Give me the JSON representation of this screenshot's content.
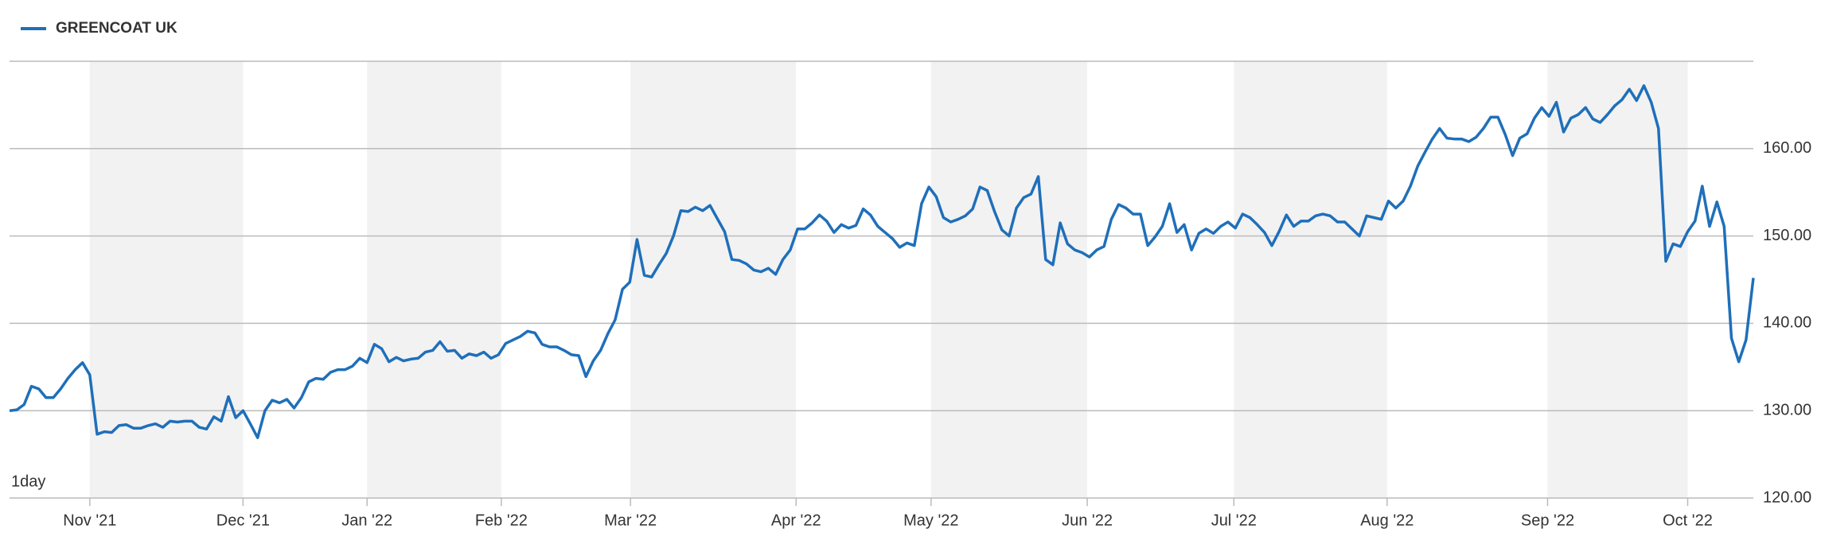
{
  "chart_data": {
    "type": "line",
    "legend_text": "GREENCOAT UK",
    "interval_label": "1day",
    "series": [
      {
        "name": "GREENCOAT UK",
        "color": "#1f6fba",
        "values": [
          130.0,
          130.1,
          130.7,
          132.8,
          132.5,
          131.5,
          131.5,
          132.5,
          133.7,
          134.7,
          135.5,
          134.1,
          127.3,
          127.6,
          127.5,
          128.3,
          128.4,
          128.0,
          128.0,
          128.3,
          128.5,
          128.1,
          128.8,
          128.7,
          128.8,
          128.8,
          128.1,
          127.9,
          129.3,
          128.8,
          131.6,
          129.2,
          130.0,
          128.5,
          126.9,
          130.0,
          131.2,
          130.9,
          131.3,
          130.3,
          131.5,
          133.3,
          133.7,
          133.6,
          134.4,
          134.7,
          134.7,
          135.1,
          136.0,
          135.5,
          137.6,
          137.1,
          135.6,
          136.1,
          135.7,
          135.9,
          136.0,
          136.7,
          136.9,
          137.9,
          136.8,
          136.9,
          136.0,
          136.5,
          136.3,
          136.7,
          136.0,
          136.4,
          137.7,
          138.1,
          138.5,
          139.1,
          138.9,
          137.6,
          137.3,
          137.3,
          136.9,
          136.4,
          136.3,
          133.9,
          135.7,
          136.9,
          138.8,
          140.4,
          143.9,
          144.7,
          149.6,
          145.5,
          145.3,
          146.7,
          148.0,
          150.0,
          152.9,
          152.8,
          153.3,
          152.9,
          153.5,
          152.0,
          150.5,
          147.3,
          147.2,
          146.8,
          146.1,
          145.9,
          146.3,
          145.6,
          147.3,
          148.4,
          150.8,
          150.8,
          151.5,
          152.4,
          151.7,
          150.4,
          151.3,
          150.9,
          151.2,
          153.1,
          152.4,
          151.1,
          150.4,
          149.7,
          148.7,
          149.2,
          148.9,
          153.7,
          155.6,
          154.5,
          152.1,
          151.6,
          151.9,
          152.3,
          153.1,
          155.6,
          155.2,
          152.8,
          150.7,
          150.0,
          153.2,
          154.4,
          154.8,
          156.8,
          147.3,
          146.7,
          151.5,
          149.1,
          148.4,
          148.1,
          147.6,
          148.4,
          148.8,
          151.9,
          153.6,
          153.2,
          152.5,
          152.5,
          148.9,
          149.9,
          151.1,
          153.7,
          150.4,
          151.3,
          148.4,
          150.3,
          150.8,
          150.3,
          151.1,
          151.6,
          150.9,
          152.5,
          152.1,
          151.3,
          150.4,
          148.9,
          150.5,
          152.4,
          151.1,
          151.7,
          151.7,
          152.3,
          152.5,
          152.3,
          151.6,
          151.6,
          150.8,
          150.0,
          152.3,
          152.1,
          151.9,
          154.0,
          153.2,
          154.0,
          155.7,
          158.0,
          159.6,
          161.1,
          162.3,
          161.2,
          161.1,
          161.1,
          160.8,
          161.3,
          162.3,
          163.6,
          163.6,
          161.6,
          159.2,
          161.2,
          161.7,
          163.5,
          164.7,
          163.7,
          165.3,
          161.9,
          163.5,
          163.9,
          164.7,
          163.4,
          163.0,
          163.9,
          164.9,
          165.6,
          166.8,
          165.5,
          167.2,
          165.3,
          162.3,
          147.1,
          149.1,
          148.8,
          150.5,
          151.7,
          155.7,
          151.1,
          153.9,
          151.1,
          138.3,
          135.6,
          138.1,
          145.2
        ]
      }
    ],
    "xlim": [
      0,
      239
    ],
    "xticks": [
      {
        "value": 11,
        "label": "Nov '21"
      },
      {
        "value": 32,
        "label": "Dec '21"
      },
      {
        "value": 49,
        "label": "Jan '22"
      },
      {
        "value": 67.4,
        "label": "Feb '22"
      },
      {
        "value": 85.1,
        "label": "Mar '22"
      },
      {
        "value": 107.8,
        "label": "Apr '22"
      },
      {
        "value": 126.3,
        "label": "May '22"
      },
      {
        "value": 147.7,
        "label": "Jun '22"
      },
      {
        "value": 167.8,
        "label": "Jul '22"
      },
      {
        "value": 188.8,
        "label": "Aug '22"
      },
      {
        "value": 210.8,
        "label": "Sep '22"
      },
      {
        "value": 230,
        "label": "Oct '22"
      }
    ],
    "ylim": [
      120,
      170
    ],
    "yticks": [
      {
        "value": 120,
        "label": "120.00"
      },
      {
        "value": 130,
        "label": "130.00"
      },
      {
        "value": 140,
        "label": "140.00"
      },
      {
        "value": 150,
        "label": "150.00"
      },
      {
        "value": 160,
        "label": "160.00"
      }
    ],
    "grid": true,
    "legend_position": "top-left"
  }
}
